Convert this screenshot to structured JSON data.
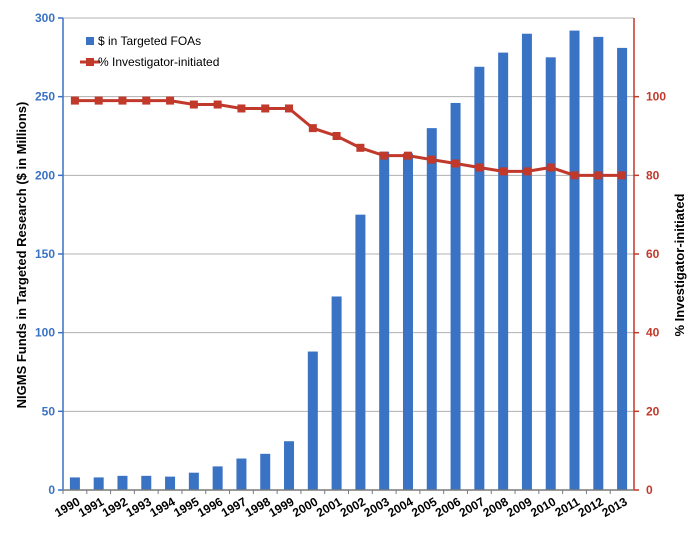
{
  "chart_data": {
    "type": "bar+line",
    "categories": [
      "1990",
      "1991",
      "1992",
      "1993",
      "1994",
      "1995",
      "1996",
      "1997",
      "1998",
      "1999",
      "2000",
      "2001",
      "2002",
      "2003",
      "2004",
      "2005",
      "2006",
      "2007",
      "2008",
      "2009",
      "2010",
      "2011",
      "2012",
      "2013"
    ],
    "series": [
      {
        "name": "$ in Targeted FOAs",
        "type": "bar",
        "axis": "left",
        "color": "#3a72c4",
        "values": [
          8,
          8,
          9,
          9,
          8.5,
          11,
          15,
          20,
          23,
          31,
          88,
          123,
          175,
          215,
          214,
          230,
          246,
          269,
          278,
          290,
          275,
          292,
          288,
          281
        ]
      },
      {
        "name": "% Investigator-initiated",
        "type": "line",
        "axis": "right",
        "color": "#c0392b",
        "values": [
          99,
          99,
          99,
          99,
          99,
          98,
          98,
          97,
          97,
          97,
          92,
          90,
          87,
          85,
          85,
          84,
          83,
          82,
          81,
          81,
          82,
          80,
          80,
          80
        ]
      }
    ],
    "ylabel": "NIGMS Funds in Targeted Research ($ in Millions)",
    "y2label": "% Investigator-initiated",
    "ylim": [
      0,
      300
    ],
    "y2lim": [
      0,
      120
    ],
    "yticks": [
      "0",
      "50",
      "100",
      "150",
      "200",
      "250",
      "300"
    ],
    "y2ticks": [
      "0",
      "20",
      "40",
      "60",
      "80",
      "100"
    ],
    "grid": true,
    "legend_position": "top-left",
    "left_axis_color": "#3a72c4",
    "right_axis_color": "#c0392b"
  }
}
